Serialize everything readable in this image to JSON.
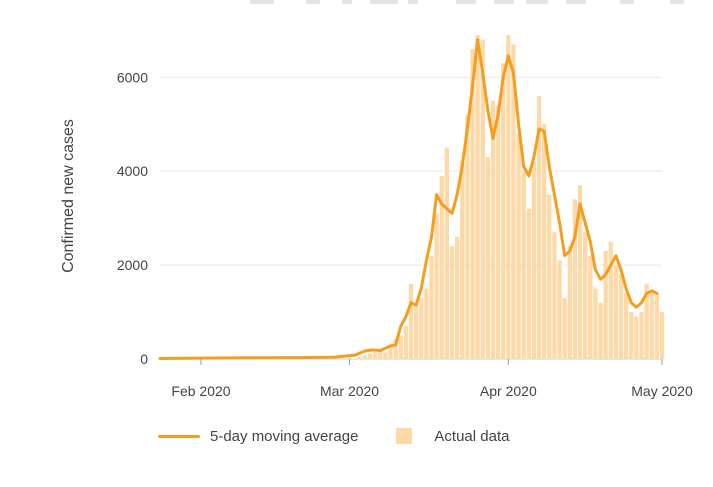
{
  "chart_data": {
    "type": "bar",
    "title": "",
    "xlabel": "",
    "ylabel": "Confirmed new cases",
    "ylim": [
      0,
      6900
    ],
    "yticks": [
      0,
      2000,
      4000,
      6000
    ],
    "xlim": [
      "2020-01-24",
      "2020-05-01"
    ],
    "xticks": [
      {
        "date": "2020-02-01",
        "label": "Feb 2020"
      },
      {
        "date": "2020-03-01",
        "label": "Mar 2020"
      },
      {
        "date": "2020-04-01",
        "label": "Apr 2020"
      },
      {
        "date": "2020-05-01",
        "label": "May 2020"
      }
    ],
    "grid": true,
    "legend_position": "bottom",
    "series": [
      {
        "name": "Actual data",
        "type": "bar",
        "color": "#fdd9a8",
        "x": [
          "2020-01-24",
          "2020-01-25",
          "2020-01-26",
          "2020-01-27",
          "2020-01-28",
          "2020-01-29",
          "2020-01-30",
          "2020-01-31",
          "2020-02-01",
          "2020-02-02",
          "2020-02-03",
          "2020-02-04",
          "2020-02-05",
          "2020-02-06",
          "2020-02-07",
          "2020-02-08",
          "2020-02-09",
          "2020-02-10",
          "2020-02-11",
          "2020-02-12",
          "2020-02-13",
          "2020-02-14",
          "2020-02-15",
          "2020-02-16",
          "2020-02-17",
          "2020-02-18",
          "2020-02-19",
          "2020-02-20",
          "2020-02-21",
          "2020-02-22",
          "2020-02-23",
          "2020-02-24",
          "2020-02-25",
          "2020-02-26",
          "2020-02-27",
          "2020-02-28",
          "2020-02-29",
          "2020-03-01",
          "2020-03-02",
          "2020-03-03",
          "2020-03-04",
          "2020-03-05",
          "2020-03-06",
          "2020-03-07",
          "2020-03-08",
          "2020-03-09",
          "2020-03-10",
          "2020-03-11",
          "2020-03-12",
          "2020-03-13",
          "2020-03-14",
          "2020-03-15",
          "2020-03-16",
          "2020-03-17",
          "2020-03-18",
          "2020-03-19",
          "2020-03-20",
          "2020-03-21",
          "2020-03-22",
          "2020-03-23",
          "2020-03-24",
          "2020-03-25",
          "2020-03-26",
          "2020-03-27",
          "2020-03-28",
          "2020-03-29",
          "2020-03-30",
          "2020-03-31",
          "2020-04-01",
          "2020-04-02",
          "2020-04-03",
          "2020-04-04",
          "2020-04-05",
          "2020-04-06",
          "2020-04-07",
          "2020-04-08",
          "2020-04-09",
          "2020-04-10",
          "2020-04-11",
          "2020-04-12",
          "2020-04-13",
          "2020-04-14",
          "2020-04-15",
          "2020-04-16",
          "2020-04-17",
          "2020-04-18",
          "2020-04-19",
          "2020-04-20",
          "2020-04-21",
          "2020-04-22",
          "2020-04-23",
          "2020-04-24",
          "2020-04-25",
          "2020-04-26",
          "2020-04-27",
          "2020-04-28",
          "2020-04-29",
          "2020-04-30",
          "2020-05-01"
        ],
        "values": [
          0,
          0,
          0,
          0,
          0,
          0,
          0,
          0,
          0,
          0,
          0,
          0,
          0,
          0,
          0,
          0,
          0,
          0,
          0,
          0,
          0,
          0,
          0,
          0,
          0,
          0,
          0,
          0,
          0,
          0,
          0,
          0,
          0,
          0,
          0,
          0,
          0,
          0,
          0,
          40,
          80,
          120,
          150,
          180,
          140,
          280,
          420,
          500,
          700,
          1600,
          1200,
          1300,
          1500,
          2200,
          3100,
          3900,
          4500,
          2400,
          2600,
          4200,
          5200,
          6600,
          6900,
          6800,
          4300,
          5500,
          5400,
          6300,
          6900,
          6700,
          4800,
          4000,
          3200,
          4200,
          5600,
          5000,
          3500,
          2700,
          2100,
          1300,
          2400,
          3400,
          3700,
          2700,
          2200,
          1500,
          1200,
          2300,
          2500,
          2000,
          1800,
          1400,
          1000,
          900,
          1000,
          1600,
          1400,
          1400,
          1000
        ]
      },
      {
        "name": "5-day moving average",
        "type": "line",
        "color": "#f59e1e",
        "x": [
          "2020-01-24",
          "2020-02-01",
          "2020-02-10",
          "2020-02-20",
          "2020-02-27",
          "2020-03-02",
          "2020-03-04",
          "2020-03-05",
          "2020-03-06",
          "2020-03-07",
          "2020-03-08",
          "2020-03-09",
          "2020-03-10",
          "2020-03-11",
          "2020-03-12",
          "2020-03-13",
          "2020-03-14",
          "2020-03-15",
          "2020-03-16",
          "2020-03-17",
          "2020-03-18",
          "2020-03-19",
          "2020-03-20",
          "2020-03-21",
          "2020-03-22",
          "2020-03-23",
          "2020-03-24",
          "2020-03-25",
          "2020-03-26",
          "2020-03-27",
          "2020-03-28",
          "2020-03-29",
          "2020-03-30",
          "2020-03-31",
          "2020-04-01",
          "2020-04-02",
          "2020-04-03",
          "2020-04-04",
          "2020-04-05",
          "2020-04-06",
          "2020-04-07",
          "2020-04-08",
          "2020-04-09",
          "2020-04-10",
          "2020-04-11",
          "2020-04-12",
          "2020-04-13",
          "2020-04-14",
          "2020-04-15",
          "2020-04-16",
          "2020-04-17",
          "2020-04-18",
          "2020-04-19",
          "2020-04-20",
          "2020-04-21",
          "2020-04-22",
          "2020-04-23",
          "2020-04-24",
          "2020-04-25",
          "2020-04-26",
          "2020-04-27",
          "2020-04-28",
          "2020-04-29",
          "2020-04-30"
        ],
        "values": [
          10,
          20,
          25,
          30,
          40,
          80,
          170,
          190,
          190,
          180,
          230,
          280,
          300,
          700,
          900,
          1200,
          1150,
          1500,
          2100,
          2600,
          3500,
          3300,
          3200,
          3100,
          3500,
          4100,
          4900,
          5800,
          6800,
          6100,
          5300,
          4700,
          5200,
          6000,
          6450,
          6100,
          5000,
          4100,
          3900,
          4300,
          4900,
          4850,
          4100,
          3500,
          2900,
          2200,
          2300,
          2600,
          3300,
          2900,
          2500,
          1900,
          1700,
          1800,
          2000,
          2200,
          1900,
          1500,
          1200,
          1100,
          1200,
          1400,
          1450,
          1400
        ]
      }
    ]
  },
  "legend": {
    "line_label": "5-day moving average",
    "bar_label": "Actual data"
  }
}
